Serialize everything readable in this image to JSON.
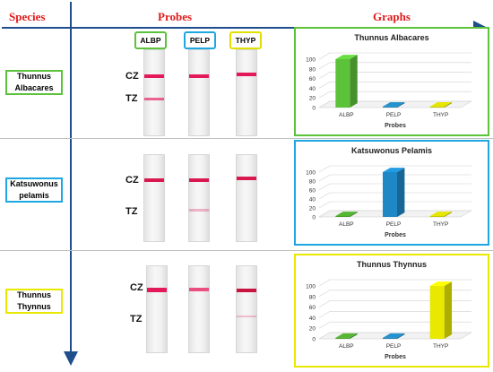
{
  "headers": {
    "species": "Species",
    "probes": "Probes",
    "graphs": "Graphs"
  },
  "probes": [
    {
      "label": "ALBP",
      "color": "#5cc23a"
    },
    {
      "label": "PELP",
      "color": "#1ea7e1"
    },
    {
      "label": "THYP",
      "color": "#e0e000"
    }
  ],
  "zones": {
    "control": "CZ",
    "test": "TZ"
  },
  "species": [
    {
      "name_line1": "Thunnus",
      "name_line2": "Albacares",
      "color": "#5cc23a",
      "test_band_intensity": [
        0.65,
        0,
        0
      ]
    },
    {
      "name_line1": "Katsuwonus",
      "name_line2": "pelamis",
      "color": "#1ea7e1",
      "test_band_intensity": [
        0,
        0.3,
        0
      ]
    },
    {
      "name_line1": "Thunnus",
      "name_line2": "Thynnus",
      "color": "#e8e800",
      "test_band_intensity": [
        0,
        0,
        0.25
      ]
    }
  ],
  "chart_data": [
    {
      "type": "bar",
      "title": "Thunnus Albacares",
      "xlabel": "Probes",
      "ylabel": "",
      "categories": [
        "ALBP",
        "PELP",
        "THYP"
      ],
      "values": [
        100,
        2,
        2
      ],
      "ylim": [
        0,
        100
      ],
      "yticks": [
        0,
        20,
        40,
        60,
        80,
        100
      ],
      "colors": [
        "#5cc23a",
        "#1e7fb3",
        "#c8c800"
      ]
    },
    {
      "type": "bar",
      "title": "Katsuwonus Pelamis",
      "xlabel": "Probes",
      "ylabel": "",
      "categories": [
        "ALBP",
        "PELP",
        "THYP"
      ],
      "values": [
        2,
        100,
        2
      ],
      "ylim": [
        0,
        100
      ],
      "yticks": [
        0,
        20,
        40,
        60,
        80,
        100
      ],
      "colors": [
        "#4a9e2c",
        "#1e88c6",
        "#c8c800"
      ]
    },
    {
      "type": "bar",
      "title": "Thunnus Thynnus",
      "xlabel": "Probes",
      "ylabel": "",
      "categories": [
        "ALBP",
        "PELP",
        "THYP"
      ],
      "values": [
        2,
        2,
        100
      ],
      "ylim": [
        0,
        100
      ],
      "yticks": [
        0,
        20,
        40,
        60,
        80,
        100
      ],
      "colors": [
        "#4a9e2c",
        "#1e7fb3",
        "#e8e800"
      ]
    }
  ]
}
